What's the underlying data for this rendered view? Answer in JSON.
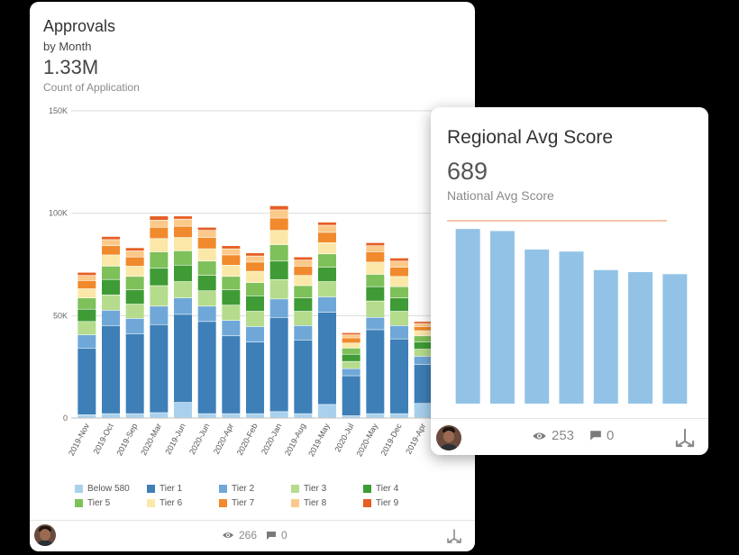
{
  "approvals": {
    "title": "Approvals",
    "subtitle": "by Month",
    "metric": "1.33M",
    "metric_label": "Count of Application",
    "views": "266",
    "comments": "0"
  },
  "regional": {
    "title": "Regional Avg Score",
    "metric": "689",
    "metric_label": "National Avg Score",
    "views": "253",
    "comments": "0"
  },
  "colors": {
    "Below 580": "#a8d1ee",
    "Tier 1": "#3e7fb7",
    "Tier 2": "#6fa8d8",
    "Tier 3": "#b4dc8c",
    "Tier 4": "#3f9b35",
    "Tier 5": "#7ec05a",
    "Tier 6": "#fbe8a8",
    "Tier 7": "#f08a2c",
    "Tier 8": "#fbc98a",
    "Tier 9": "#e55e24",
    "regional_bar": "#92c3e6",
    "reference_line": "#f0a07c"
  },
  "chart_data": [
    {
      "type": "bar",
      "stacked": true,
      "title": "Approvals",
      "yticks": [
        "150K",
        "100K",
        "50K",
        "0"
      ],
      "ylim": [
        0,
        150000
      ],
      "grid": true,
      "legend_position": "bottom",
      "categories": [
        "2019-Nov",
        "2019-Oct",
        "2019-Sep",
        "2020-Mar",
        "2019-Jun",
        "2020-Jun",
        "2020-Apr",
        "2020-Feb",
        "2020-Jan",
        "2019-Aug",
        "2019-May",
        "2020-Jul",
        "2020-May",
        "2019-Dec",
        "2019-Apr"
      ],
      "series": [
        {
          "name": "Below 580",
          "values": [
            1500,
            2000,
            2000,
            2500,
            7500,
            2000,
            2000,
            2000,
            3000,
            2000,
            6500,
            1000,
            2000,
            2000,
            7000
          ]
        },
        {
          "name": "Tier 1",
          "values": [
            32500,
            43000,
            39000,
            43000,
            43000,
            45000,
            38000,
            35000,
            46000,
            36000,
            45000,
            19500,
            41000,
            36500,
            19000
          ]
        },
        {
          "name": "Tier 2",
          "values": [
            6500,
            7500,
            7500,
            9000,
            8000,
            7500,
            7500,
            7500,
            9000,
            7000,
            7500,
            3500,
            6000,
            6500,
            4000
          ]
        },
        {
          "name": "Tier 3",
          "values": [
            6500,
            7500,
            7000,
            10000,
            8000,
            7500,
            7500,
            7500,
            9500,
            7000,
            7500,
            3500,
            8000,
            7000,
            3500
          ]
        },
        {
          "name": "Tier 4",
          "values": [
            6000,
            7500,
            7000,
            8500,
            8000,
            7500,
            7500,
            7500,
            9000,
            6500,
            7000,
            3500,
            7000,
            6500,
            3500
          ]
        },
        {
          "name": "Tier 5",
          "values": [
            5500,
            6500,
            6500,
            8000,
            7000,
            7000,
            6500,
            6500,
            8000,
            6000,
            6500,
            3000,
            6000,
            5500,
            3000
          ]
        },
        {
          "name": "Tier 6",
          "values": [
            4500,
            5500,
            5000,
            6500,
            6500,
            6000,
            5500,
            5500,
            7000,
            5000,
            5500,
            2500,
            6000,
            5000,
            2500
          ]
        },
        {
          "name": "Tier 7",
          "values": [
            4000,
            4500,
            4500,
            5500,
            5500,
            5500,
            5000,
            4500,
            6000,
            4500,
            5000,
            2500,
            5000,
            4500,
            2000
          ]
        },
        {
          "name": "Tier 8",
          "values": [
            2500,
            3000,
            3000,
            3500,
            3500,
            3500,
            3000,
            3000,
            4000,
            3000,
            3500,
            1500,
            3000,
            3000,
            1500
          ]
        },
        {
          "name": "Tier 9",
          "values": [
            1500,
            1500,
            1500,
            2000,
            1500,
            1500,
            1500,
            1500,
            2000,
            1500,
            1500,
            1000,
            1500,
            1500,
            1000
          ]
        }
      ]
    },
    {
      "type": "bar",
      "title": "Regional Avg Score",
      "reference_line": {
        "label": "National Avg Score",
        "value": 689
      },
      "values": [
        685,
        684,
        675,
        674,
        665,
        664,
        663
      ],
      "ylim": [
        600,
        689
      ],
      "grid": false
    }
  ]
}
